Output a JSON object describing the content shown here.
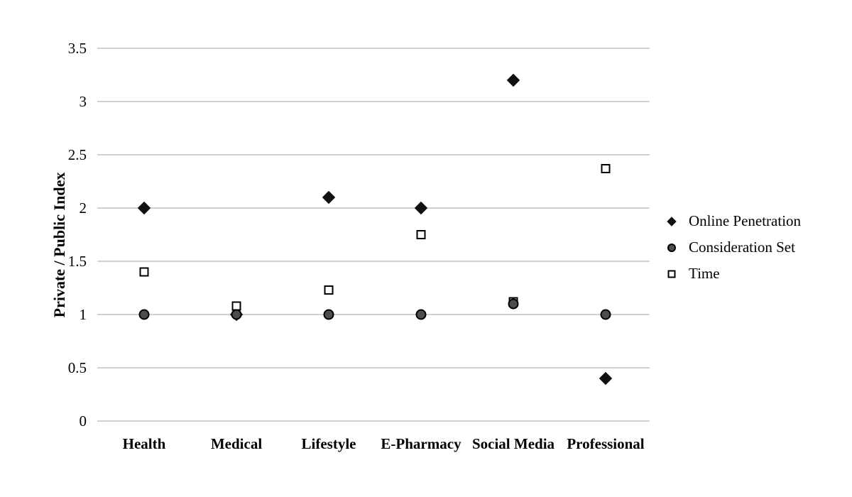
{
  "chart_data": {
    "type": "scatter",
    "title": "",
    "xlabel": "",
    "ylabel": "Private / Public Index",
    "categories": [
      "Health",
      "Medical",
      "Lifestyle",
      "E-Pharmacy",
      "Social Media",
      "Professional"
    ],
    "y_axis": {
      "min": 0,
      "max": 3.5,
      "step": 0.5,
      "tick_values": [
        0,
        0.5,
        1,
        1.5,
        2,
        2.5,
        3,
        3.5
      ],
      "tick_labels": [
        "0",
        "0.5",
        "1",
        "1.5",
        "2",
        "2.5",
        "3",
        "3.5"
      ]
    },
    "grid": true,
    "legend_position": "right",
    "series": [
      {
        "name": "Online Penetration",
        "marker": "diamond",
        "fill": "#111111",
        "stroke": "#111111",
        "values": [
          2.0,
          1.0,
          2.1,
          2.0,
          3.2,
          0.4
        ],
        "zorder": 0
      },
      {
        "name": "Consideration Set",
        "marker": "circle",
        "fill": "#4d4d4d",
        "stroke": "#000000",
        "values": [
          1.0,
          1.0,
          1.0,
          1.0,
          1.1,
          1.0
        ],
        "zorder": 2
      },
      {
        "name": "Time",
        "marker": "square",
        "fill": "#ffffff",
        "stroke": "#000000",
        "values": [
          1.4,
          1.08,
          1.23,
          1.75,
          1.12,
          2.37
        ],
        "zorder": 1
      }
    ],
    "colors": {
      "gridline": "#c4c4c4",
      "background": "#ffffff",
      "text": "#000000"
    }
  }
}
